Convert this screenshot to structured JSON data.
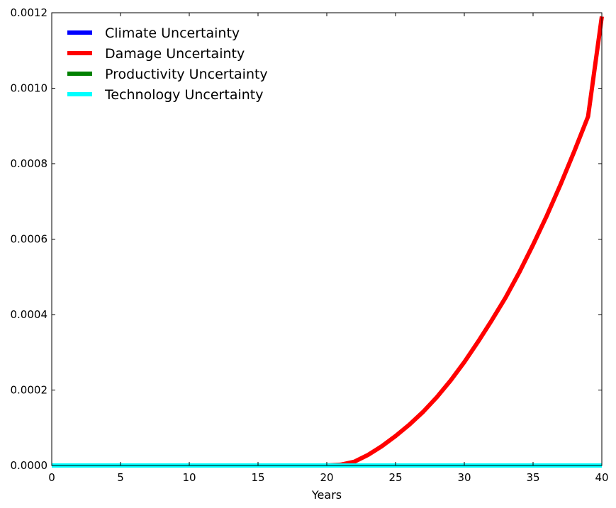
{
  "chart_data": {
    "type": "line",
    "title": "",
    "xlabel": "Years",
    "ylabel": "",
    "xlim": [
      0,
      40
    ],
    "ylim": [
      0,
      0.0012
    ],
    "x_ticks": [
      "0",
      "5",
      "10",
      "15",
      "20",
      "25",
      "30",
      "35",
      "40"
    ],
    "y_ticks": [
      "0.0000",
      "0.0002",
      "0.0004",
      "0.0006",
      "0.0008",
      "0.0010",
      "0.0012"
    ],
    "grid": false,
    "legend_position": "top-left",
    "series": [
      {
        "name": "Climate Uncertainty",
        "color": "#0000ff",
        "x": [
          0,
          5,
          10,
          15,
          20,
          25,
          30,
          35,
          40
        ],
        "y": [
          0,
          0,
          0,
          0,
          0,
          0,
          0,
          0,
          0
        ]
      },
      {
        "name": "Damage Uncertainty",
        "color": "#ff0000",
        "x": [
          0,
          5,
          10,
          15,
          20,
          21,
          22,
          23,
          24,
          25,
          26,
          27,
          28,
          29,
          30,
          31,
          32,
          33,
          34,
          35,
          36,
          37,
          38,
          39,
          40
        ],
        "y": [
          0,
          0,
          0,
          0,
          0,
          2e-06,
          1e-05,
          2.8e-05,
          5.1e-05,
          7.8e-05,
          0.000108,
          0.000142,
          0.000181,
          0.000225,
          0.000274,
          0.000328,
          0.000385,
          0.000445,
          0.000512,
          0.000585,
          0.000662,
          0.000745,
          0.000833,
          0.000925,
          0.00119
        ]
      },
      {
        "name": "Productivity Uncertainty",
        "color": "#008000",
        "x": [
          0,
          5,
          10,
          15,
          20,
          25,
          30,
          35,
          40
        ],
        "y": [
          0,
          0,
          0,
          0,
          0,
          0,
          0,
          0,
          0
        ]
      },
      {
        "name": "Technology Uncertainty",
        "color": "#00ffff",
        "x": [
          0,
          5,
          10,
          15,
          20,
          25,
          30,
          35,
          40
        ],
        "y": [
          0,
          0,
          0,
          0,
          0,
          0,
          0,
          0,
          0
        ]
      }
    ]
  }
}
